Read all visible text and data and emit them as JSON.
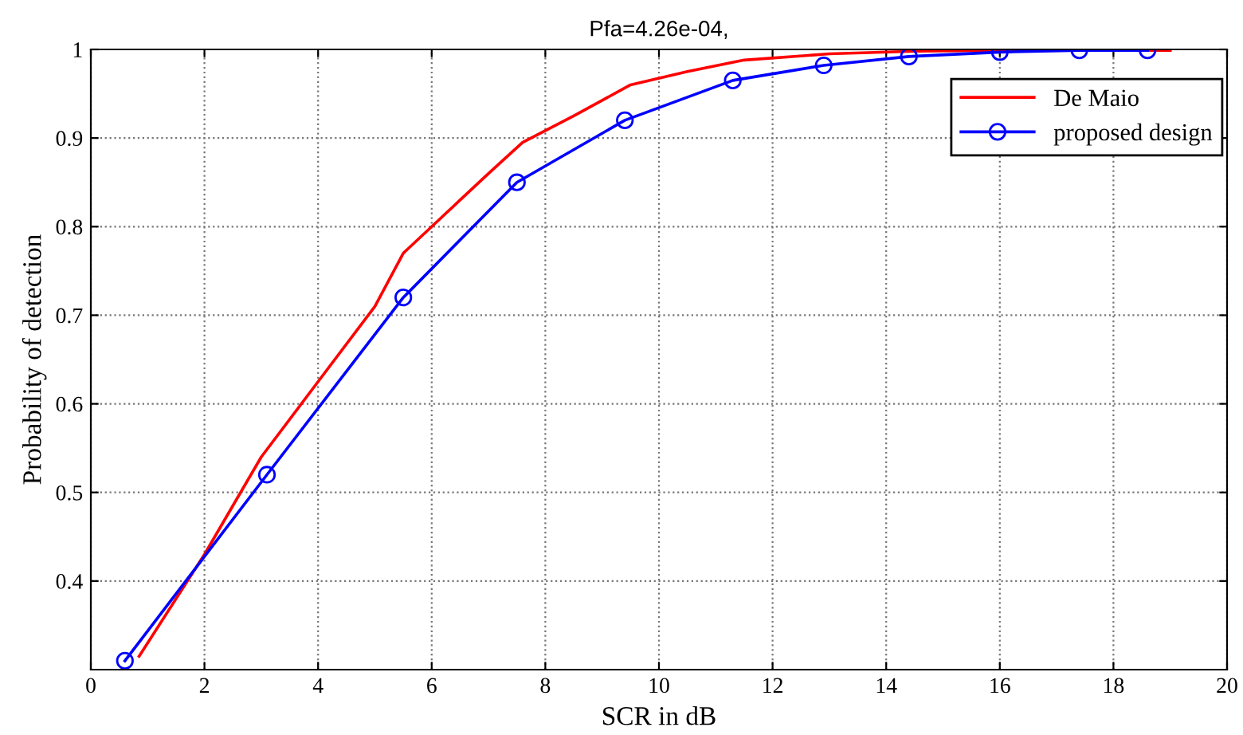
{
  "chart_data": {
    "type": "line",
    "title": "Pfa=4.26e-04,",
    "xlabel": "SCR in dB",
    "ylabel": "Probability of detection",
    "xlim": [
      0,
      20
    ],
    "xticks": [
      0,
      2,
      4,
      6,
      8,
      10,
      12,
      14,
      16,
      18,
      20
    ],
    "ylim": [
      0.3,
      1
    ],
    "yticks": [
      0.4,
      0.5,
      0.6,
      0.7,
      0.8,
      0.9,
      1
    ],
    "grid": true,
    "legend": "top right",
    "series": [
      {
        "name": "De Maio",
        "color": "#ff0000",
        "marker": "none",
        "x": [
          0.85,
          2,
          3,
          4,
          5,
          5.5,
          6,
          6.5,
          7,
          7.6,
          8.5,
          9.5,
          10.5,
          11.5,
          13,
          14.5,
          16,
          19
        ],
        "values": [
          0.315,
          0.43,
          0.54,
          0.625,
          0.71,
          0.77,
          0.8,
          0.83,
          0.86,
          0.895,
          0.925,
          0.96,
          0.975,
          0.988,
          0.995,
          0.998,
          0.999,
          0.999
        ]
      },
      {
        "name": "proposed design",
        "color": "#0000ff",
        "marker": "circle",
        "x": [
          0.6,
          3.1,
          5.5,
          7.5,
          9.4,
          11.3,
          12.9,
          14.4,
          16,
          17.4,
          18.6
        ],
        "values": [
          0.31,
          0.52,
          0.72,
          0.85,
          0.92,
          0.965,
          0.982,
          0.992,
          0.997,
          0.999,
          0.999
        ]
      }
    ]
  }
}
